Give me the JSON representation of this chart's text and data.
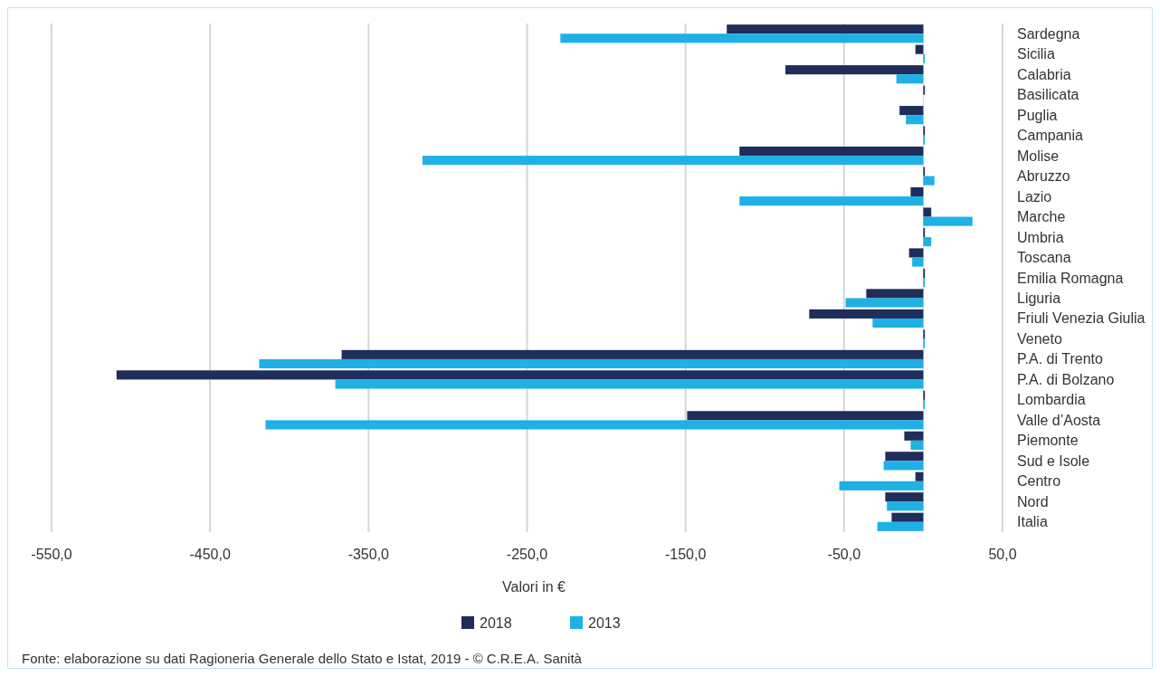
{
  "chart_data": {
    "type": "bar",
    "orientation": "horizontal",
    "xlabel": "Valori in €",
    "categories": [
      "Sardegna",
      "Sicilia",
      "Calabria",
      "Basilicata",
      "Puglia",
      "Campania",
      "Molise",
      "Abruzzo",
      "Lazio",
      "Marche",
      "Umbria",
      "Toscana",
      "Emilia Romagna",
      "Liguria",
      "Friuli Venezia Giulia",
      "Veneto",
      "P.A. di Trento",
      "P.A. di Bolzano",
      "Lombardia",
      "Valle d’Aosta",
      "Piemonte",
      "Sud e Isole",
      "Centro",
      "Nord",
      "Italia"
    ],
    "series": [
      {
        "name": "2018",
        "color": "#1f2d5a",
        "values": [
          -124,
          -5,
          -87,
          1,
          -15,
          1,
          -116,
          1,
          -8,
          5,
          1,
          -9,
          1,
          -36,
          -72,
          1,
          -367,
          -509,
          1,
          -149,
          -12,
          -24,
          -5,
          -24,
          -20
        ]
      },
      {
        "name": "2013",
        "color": "#1fb0e6",
        "values": [
          -229,
          1,
          -17,
          0,
          -11,
          1,
          -316,
          7,
          -116,
          31,
          5,
          -7,
          1,
          -49,
          -32,
          1,
          -419,
          -371,
          1,
          -415,
          -8,
          -25,
          -53,
          -23,
          -29
        ]
      }
    ],
    "xlim": [
      -550,
      50
    ],
    "xticks": [
      {
        "value": -550,
        "label": "-550,0"
      },
      {
        "value": -450,
        "label": "-450,0"
      },
      {
        "value": -350,
        "label": "-350,0"
      },
      {
        "value": -250,
        "label": "-250,0"
      },
      {
        "value": -150,
        "label": "-150,0"
      },
      {
        "value": -50,
        "label": "-50,0"
      },
      {
        "value": 50,
        "label": "50,0"
      }
    ],
    "grid": "x",
    "legend": "bottom",
    "annotations": [
      "Fonte: elaborazione su dati Ragioneria Generale dello Stato e Istat, 2019  - © C.R.E.A. Sanità"
    ]
  }
}
